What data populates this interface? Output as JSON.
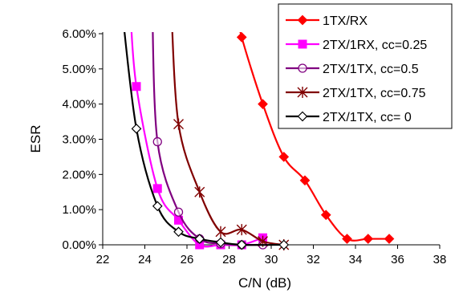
{
  "chart_data": {
    "type": "line",
    "title": "",
    "xlabel": "C/N (dB)",
    "ylabel": "ESR",
    "xlim": [
      22,
      38
    ],
    "ylim": [
      0,
      0.06
    ],
    "x_ticks": [
      22,
      24,
      26,
      28,
      30,
      32,
      34,
      36,
      38
    ],
    "y_ticks": [
      0,
      0.01,
      0.02,
      0.03,
      0.04,
      0.05,
      0.06
    ],
    "x_tick_labels": [
      "22",
      "24",
      "26",
      "28",
      "30",
      "32",
      "34",
      "36",
      "38"
    ],
    "y_tick_labels": [
      "0.00%",
      "1.00%",
      "2.00%",
      "3.00%",
      "4.00%",
      "5.00%",
      "6.00%"
    ],
    "grid": false,
    "legend_position": "top-right",
    "series": [
      {
        "name": "1TX/RX",
        "color": "#ff0000",
        "marker": "diamond-filled",
        "x": [
          28.6,
          29.6,
          30.6,
          31.6,
          32.6,
          33.6,
          34.6,
          35.6
        ],
        "y": [
          0.059,
          0.04,
          0.025,
          0.0183,
          0.0085,
          0.0017,
          0.0017,
          0.0017
        ],
        "line_from": [
          28.3,
          0.068
        ]
      },
      {
        "name": "2TX/1RX, cc=0.25",
        "color": "#ff00ff",
        "marker": "square-filled",
        "x": [
          23.6,
          24.6,
          25.6,
          26.6,
          27.6,
          28.6,
          29.6
        ],
        "y": [
          0.045,
          0.016,
          0.007,
          0.0,
          0.0,
          0.0,
          0.002
        ],
        "line_from": [
          23.3,
          0.068
        ]
      },
      {
        "name": "2TX/1TX, cc=0.5",
        "color": "#800080",
        "marker": "circle-open",
        "x": [
          24.6,
          25.6,
          26.6,
          27.6,
          28.6,
          29.6
        ],
        "y": [
          0.0293,
          0.0093,
          0.0017,
          0.0003,
          0.0,
          0.0
        ],
        "line_from": [
          24.35,
          0.068
        ]
      },
      {
        "name": "2TX/1TX, cc=0.75",
        "color": "#800000",
        "marker": "asterisk",
        "x": [
          25.6,
          26.6,
          27.6,
          28.6,
          29.6,
          30.6
        ],
        "y": [
          0.0343,
          0.015,
          0.0037,
          0.0043,
          0.001,
          0.0
        ],
        "line_from": [
          25.25,
          0.068
        ]
      },
      {
        "name": "2TX/1TX, cc= 0",
        "color": "#000000",
        "marker": "diamond-open",
        "x": [
          23.6,
          24.6,
          25.6,
          26.6,
          27.6,
          28.6,
          30.6
        ],
        "y": [
          0.033,
          0.011,
          0.0037,
          0.0017,
          0.0007,
          0.0,
          0.0
        ],
        "line_from": [
          22.9,
          0.068
        ]
      }
    ]
  }
}
